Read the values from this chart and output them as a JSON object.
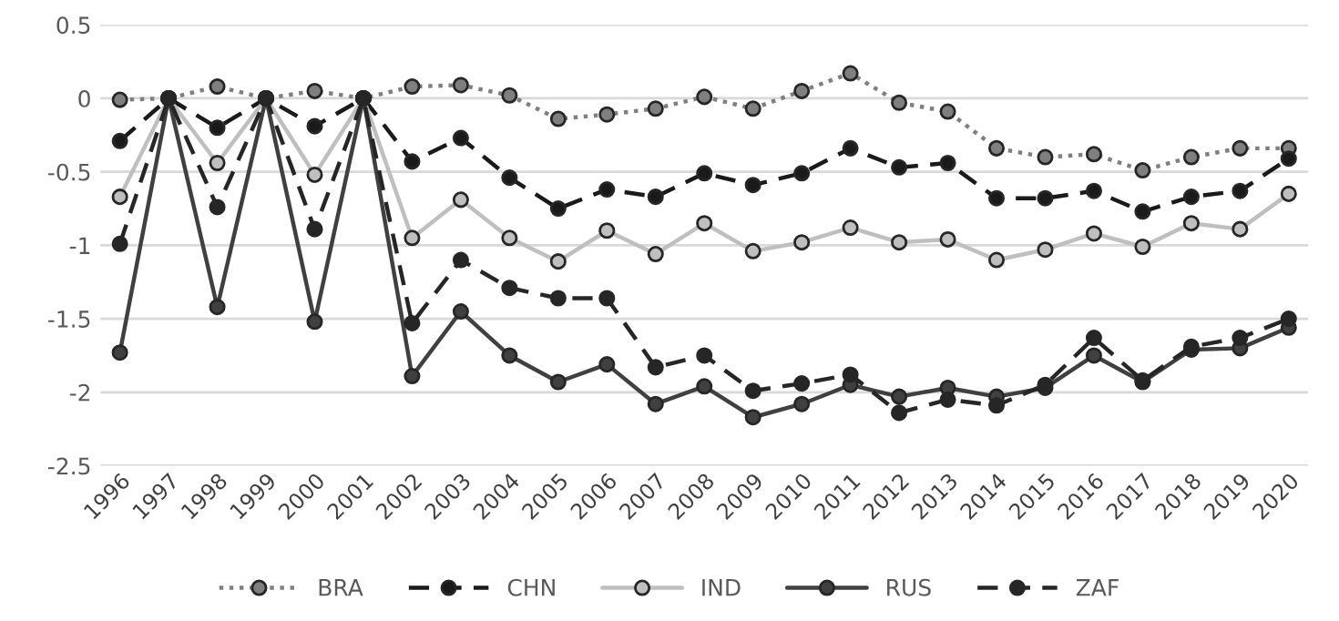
{
  "chart_data": {
    "type": "line",
    "categories": [
      "1996",
      "1997",
      "1998",
      "1999",
      "2000",
      "2001",
      "2002",
      "2003",
      "2004",
      "2005",
      "2006",
      "2007",
      "2008",
      "2009",
      "2010",
      "2011",
      "2012",
      "2013",
      "2014",
      "2015",
      "2016",
      "2017",
      "2018",
      "2019",
      "2020"
    ],
    "series": [
      {
        "name": "BRA",
        "color": "#7f7f7f",
        "line_style": "dotted",
        "values": [
          -0.01,
          0,
          0.08,
          0,
          0.05,
          0,
          0.08,
          0.09,
          0.02,
          -0.14,
          -0.11,
          -0.07,
          0.01,
          -0.07,
          0.05,
          0.17,
          -0.03,
          -0.09,
          -0.34,
          -0.4,
          -0.38,
          -0.49,
          -0.4,
          -0.34,
          -0.34
        ]
      },
      {
        "name": "CHN",
        "color": "#1a1a1a",
        "line_style": "dashed",
        "values": [
          -0.29,
          0,
          -0.2,
          0,
          -0.19,
          0,
          -0.43,
          -0.27,
          -0.54,
          -0.75,
          -0.62,
          -0.67,
          -0.51,
          -0.59,
          -0.51,
          -0.34,
          -0.47,
          -0.44,
          -0.68,
          -0.68,
          -0.63,
          -0.77,
          -0.67,
          -0.63,
          -0.41
        ]
      },
      {
        "name": "IND",
        "color": "#bfbfbf",
        "line_style": "solid",
        "values": [
          -0.67,
          0,
          -0.44,
          0,
          -0.52,
          0,
          -0.95,
          -0.69,
          -0.95,
          -1.11,
          -0.9,
          -1.06,
          -0.85,
          -1.04,
          -0.98,
          -0.88,
          -0.98,
          -0.96,
          -1.1,
          -1.03,
          -0.92,
          -1.01,
          -0.85,
          -0.89,
          -0.65
        ]
      },
      {
        "name": "RUS",
        "color": "#404040",
        "line_style": "solid",
        "values": [
          -1.73,
          0,
          -1.42,
          0,
          -1.52,
          0,
          -1.89,
          -1.45,
          -1.75,
          -1.93,
          -1.81,
          -2.08,
          -1.96,
          -2.17,
          -2.08,
          -1.95,
          -2.03,
          -1.97,
          -2.03,
          -1.97,
          -1.75,
          -1.93,
          -1.71,
          -1.7,
          -1.56
        ]
      },
      {
        "name": "ZAF",
        "color": "#262626",
        "line_style": "dashed",
        "values": [
          -0.99,
          0,
          -0.74,
          0,
          -0.89,
          0,
          -1.53,
          -1.1,
          -1.29,
          -1.36,
          -1.36,
          -1.83,
          -1.75,
          -1.99,
          -1.94,
          -1.88,
          -2.14,
          -2.05,
          -2.09,
          -1.95,
          -1.63,
          -1.92,
          -1.69,
          -1.63,
          -1.5
        ]
      }
    ],
    "ylim": [
      -2.5,
      0.5
    ],
    "yticks": [
      -2.5,
      -2,
      -1.5,
      -1,
      -0.5,
      0,
      0.5
    ],
    "grid": "y",
    "legend": "bottom",
    "marker": "circle"
  }
}
